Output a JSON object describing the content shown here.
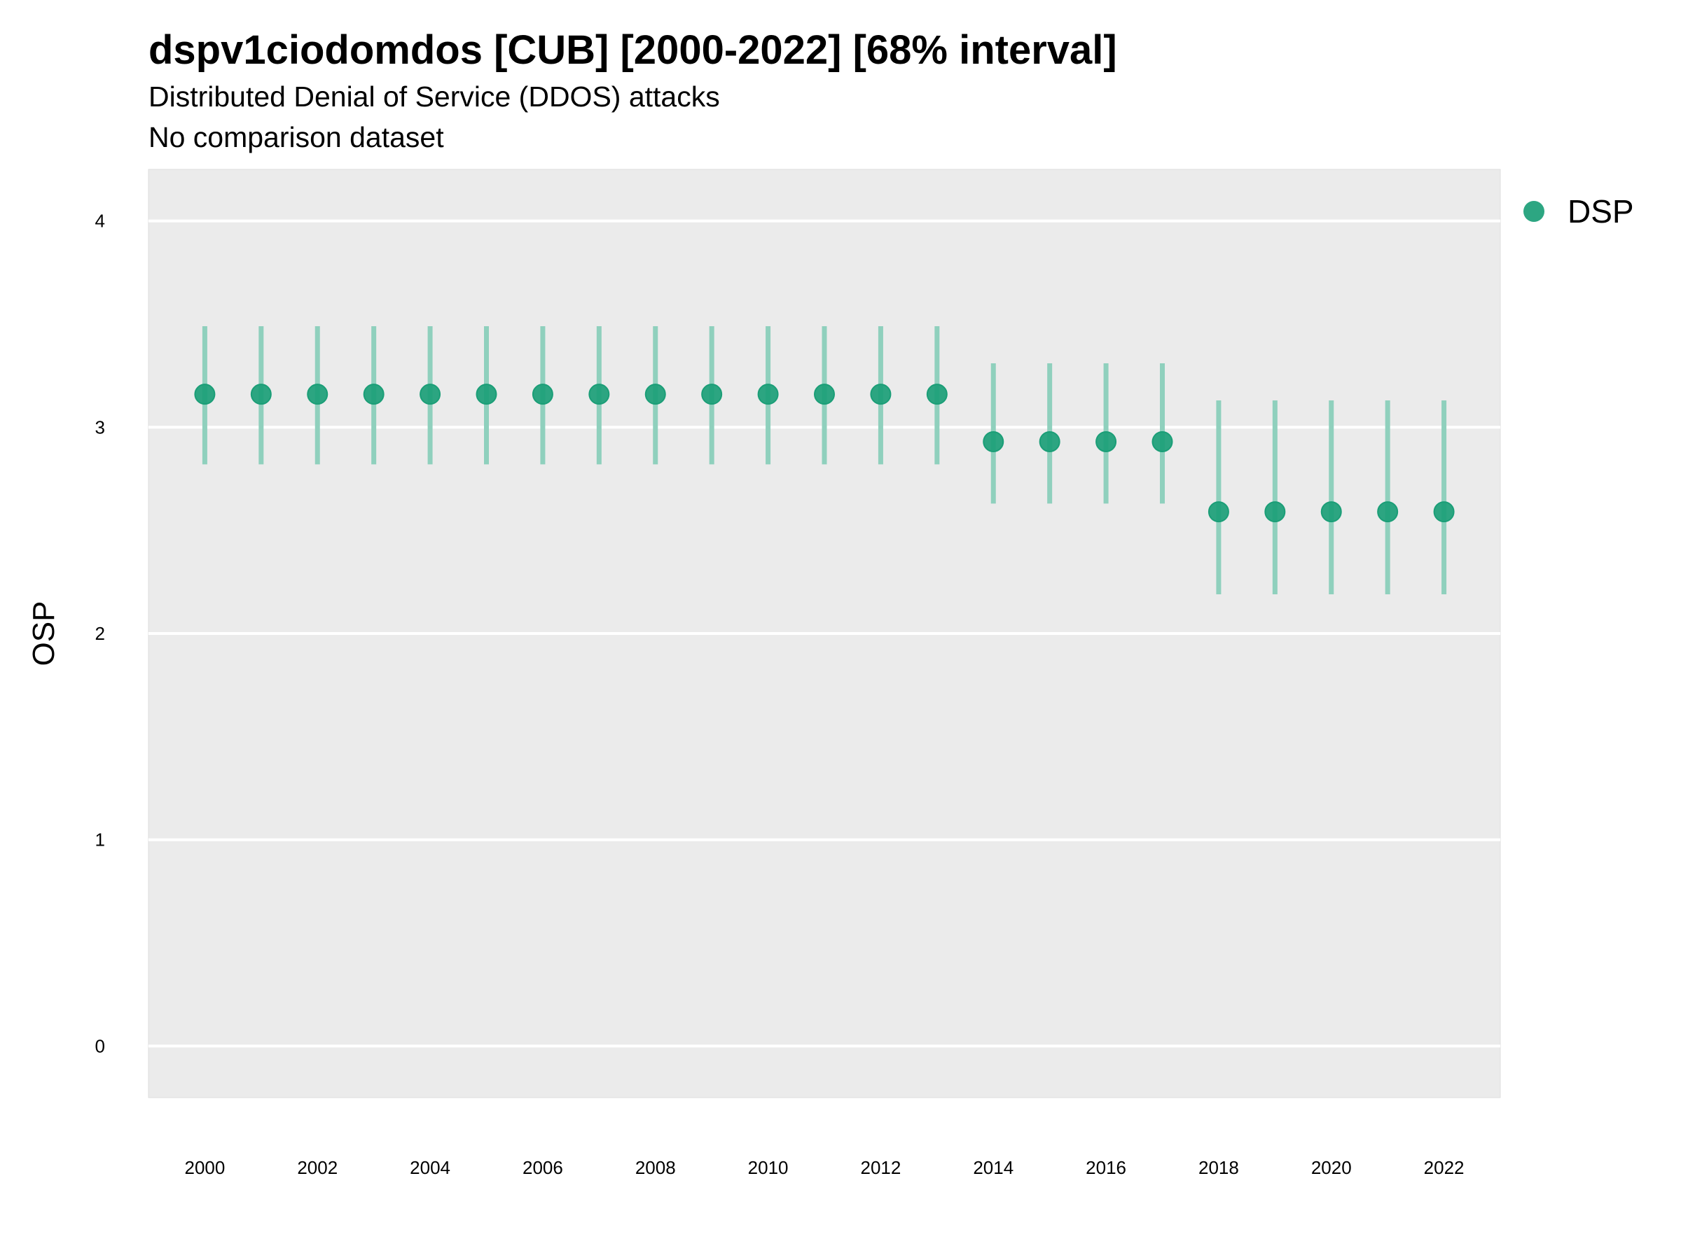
{
  "chart_data": {
    "type": "scatter",
    "title": "dspv1ciodomdos [CUB] [2000-2022] [68% interval]",
    "subtitle": "Distributed Denial of Service (DDOS) attacks",
    "subtitle2": "No comparison dataset",
    "xlabel": "",
    "ylabel": "OSP",
    "xlim": [
      1999,
      2023
    ],
    "ylim": [
      -0.25,
      4.25
    ],
    "x_ticks": [
      2000,
      2002,
      2004,
      2006,
      2008,
      2010,
      2012,
      2014,
      2016,
      2018,
      2020,
      2022
    ],
    "y_ticks": [
      0,
      1,
      2,
      3,
      4
    ],
    "grid": true,
    "legend_position": "top-right",
    "colors": {
      "point": "#1b9e77",
      "interval": "#8fd0bd",
      "panel": "#ebebeb",
      "grid": "#ffffff"
    },
    "series": [
      {
        "name": "DSP",
        "x": [
          2000,
          2001,
          2002,
          2003,
          2004,
          2005,
          2006,
          2007,
          2008,
          2009,
          2010,
          2011,
          2012,
          2013,
          2014,
          2015,
          2016,
          2017,
          2018,
          2019,
          2020,
          2021,
          2022
        ],
        "y": [
          3.16,
          3.16,
          3.16,
          3.16,
          3.16,
          3.16,
          3.16,
          3.16,
          3.16,
          3.16,
          3.16,
          3.16,
          3.16,
          3.16,
          2.93,
          2.93,
          2.93,
          2.93,
          2.59,
          2.59,
          2.59,
          2.59,
          2.59
        ],
        "lower": [
          2.82,
          2.82,
          2.82,
          2.82,
          2.82,
          2.82,
          2.82,
          2.82,
          2.82,
          2.82,
          2.82,
          2.82,
          2.82,
          2.82,
          2.63,
          2.63,
          2.63,
          2.63,
          2.19,
          2.19,
          2.19,
          2.19,
          2.19
        ],
        "upper": [
          3.49,
          3.49,
          3.49,
          3.49,
          3.49,
          3.49,
          3.49,
          3.49,
          3.49,
          3.49,
          3.49,
          3.49,
          3.49,
          3.49,
          3.31,
          3.31,
          3.31,
          3.31,
          3.13,
          3.13,
          3.13,
          3.13,
          3.13
        ]
      }
    ]
  }
}
